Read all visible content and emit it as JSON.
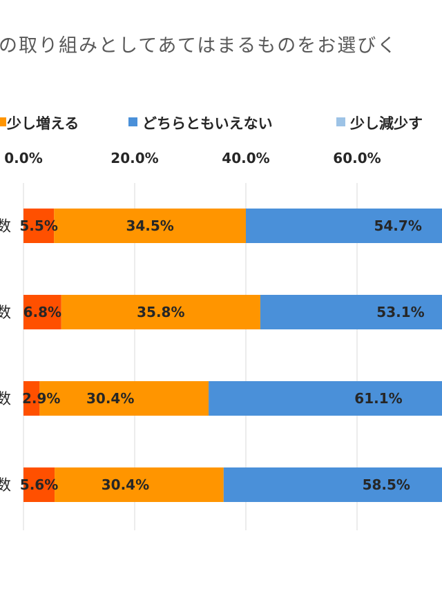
{
  "chart_data": {
    "type": "bar",
    "orientation": "horizontal",
    "stacked": true,
    "title": "の取り組みとしてあてはまるものをお選びく",
    "categories": [
      "数",
      "数",
      "数",
      "数"
    ],
    "series": [
      {
        "name": "",
        "color": "#FF5000",
        "values": [
          5.5,
          6.8,
          2.9,
          5.6
        ]
      },
      {
        "name": "少し増える",
        "color": "#FF9500",
        "values": [
          34.5,
          35.8,
          30.4,
          30.4
        ]
      },
      {
        "name": "どちらともいえない",
        "color": "#4A90D9",
        "values": [
          54.7,
          53.1,
          61.1,
          58.5
        ]
      },
      {
        "name": "少し減少す",
        "color": "#9DC3E6",
        "values": [
          null,
          null,
          null,
          null
        ]
      }
    ],
    "x_ticks": [
      "0.0%",
      "20.0%",
      "40.0%",
      "60.0%"
    ],
    "xlim": [
      0,
      80
    ],
    "grid": true,
    "legend_position": "top"
  }
}
